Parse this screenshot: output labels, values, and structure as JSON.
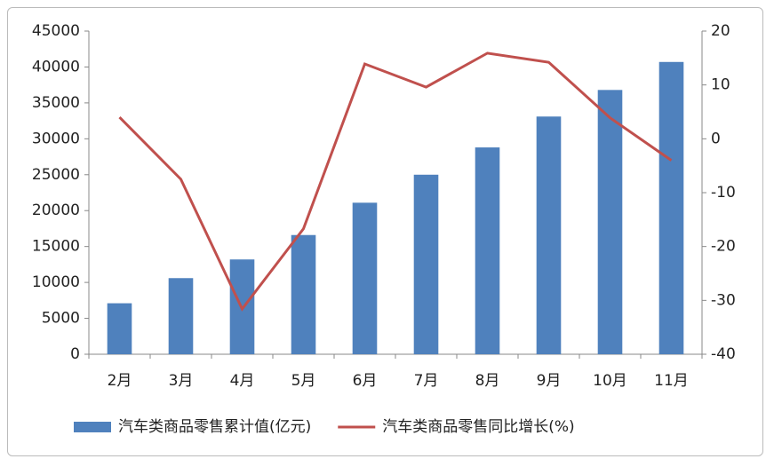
{
  "chart_data": {
    "type": "bar",
    "categories": [
      "2月",
      "3月",
      "4月",
      "5月",
      "6月",
      "7月",
      "8月",
      "9月",
      "10月",
      "11月"
    ],
    "series": [
      {
        "name": "汽车类商品零售累计值(亿元)",
        "type": "bar",
        "color": "#4f81bd",
        "values": [
          7100,
          10600,
          13200,
          16600,
          21100,
          25000,
          28800,
          33100,
          36800,
          40700
        ]
      },
      {
        "name": "汽车类商品零售同比增长(%)",
        "type": "line",
        "axis": "y2",
        "color": "#c0504d",
        "values": [
          4.0,
          -7.5,
          -31.6,
          -16.7,
          13.9,
          9.6,
          15.9,
          14.2,
          3.9,
          -4.0
        ]
      }
    ],
    "ylim": [
      0,
      45000
    ],
    "yticks": [
      0,
      5000,
      10000,
      15000,
      20000,
      25000,
      30000,
      35000,
      40000,
      45000
    ],
    "y2lim": [
      -40,
      20
    ],
    "y2ticks": [
      -40,
      -30,
      -20,
      -10,
      0,
      10,
      20
    ],
    "grid": false,
    "legend": "bottom"
  }
}
